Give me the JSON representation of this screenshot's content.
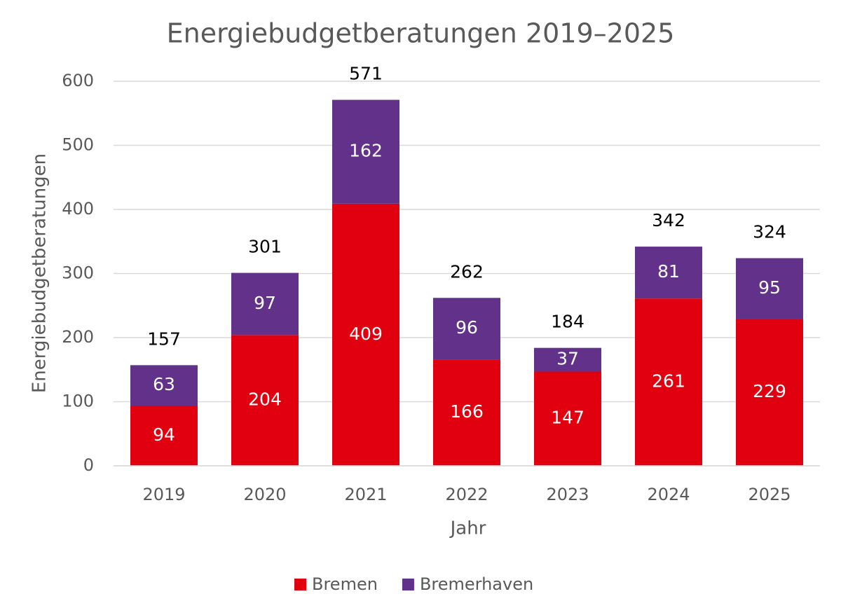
{
  "chart_data": {
    "type": "stacked-bar",
    "title": "Energiebudgetberatungen 2019–2025",
    "x_label": "Jahr",
    "y_label": "Energiebudgetberatungen",
    "categories": [
      "2019",
      "2020",
      "2021",
      "2022",
      "2023",
      "2024",
      "2025"
    ],
    "series": [
      {
        "name": "Bremen",
        "color": "#e0000f",
        "values": [
          94,
          204,
          409,
          166,
          147,
          261,
          229
        ]
      },
      {
        "name": "Bremerhaven",
        "color": "#62318a",
        "values": [
          63,
          97,
          162,
          96,
          37,
          81,
          95
        ]
      }
    ],
    "totals": [
      157,
      301,
      571,
      262,
      184,
      342,
      324
    ],
    "ylim": [
      0,
      600
    ],
    "yticks": [
      0,
      100,
      200,
      300,
      400,
      500,
      600
    ],
    "grid": true,
    "legend": "bottom"
  }
}
